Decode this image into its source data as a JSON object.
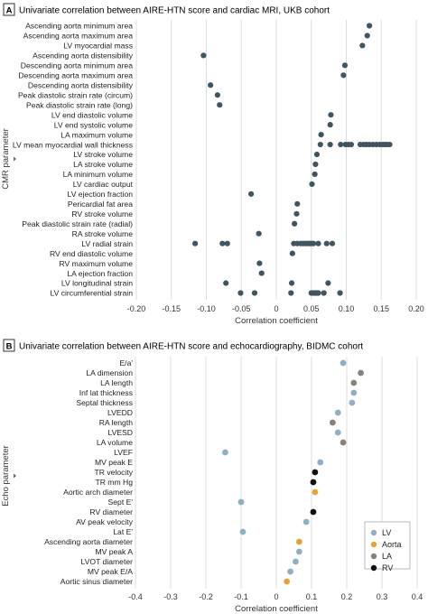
{
  "panels": [
    {
      "letter": "A",
      "title": "Univariate correlation between AIRE-HTN score and cardiac MRI, UKB cohort"
    },
    {
      "letter": "B",
      "title": "Univariate correlation between AIRE-HTN score and echocardiography, BIDMC cohort"
    }
  ],
  "colors": {
    "grid": "#d9dde0",
    "panel_letter_bg": "#ffffff",
    "point_default": "#3f5560",
    "LV": "#8fb0c3",
    "Aorta": "#e8a23a",
    "LA": "#8a8278",
    "RV": "#111111"
  },
  "chart_data": [
    {
      "type": "scatter",
      "title": "Univariate correlation between AIRE-HTN score and cardiac MRI, UKB cohort",
      "xlabel": "Correlation coefficient",
      "ylabel": "CMR parameter",
      "xlim": [
        -0.2,
        0.2
      ],
      "xticks": [
        "-0.20",
        "-0.15",
        "-0.10",
        "-0.05",
        "0",
        "0.05",
        "0.10",
        "0.15",
        "0.20"
      ],
      "tick_values": [
        -0.2,
        -0.15,
        -0.1,
        -0.05,
        0,
        0.05,
        0.1,
        0.15,
        0.2
      ],
      "grid": "vertical",
      "categories": [
        "Ascending aorta minimum area",
        "Ascending aorta maximum area",
        "LV myocardial mass",
        "Ascending aorta distensibility",
        "Descending aorta minimum area",
        "Descending aorta maximum area",
        "Descending aorta distensibility",
        "Peak diastolic strain rate (circum)",
        "Peak diastolic strain rate (long)",
        "LV end diastolic volume",
        "LV end systolic volume",
        "LA maximum volume",
        "LV mean myocardial wall thickness",
        "LV stroke volume",
        "LA stroke volume",
        "LA minimum volume",
        "LV cardiac output",
        "LV ejection fraction",
        "Pericardial fat area",
        "RV stroke volume",
        "Peak diastolic strain rate (radial)",
        "RA stroke volume",
        "LV radial strain",
        "RV end diastolic volume",
        "RV maximum volume",
        "LA ejection fraction",
        "LV longitudinal strain",
        "LV circumferential strain"
      ],
      "values": [
        [
          0.133
        ],
        [
          0.13
        ],
        [
          0.123
        ],
        [
          -0.104
        ],
        [
          0.098
        ],
        [
          0.096
        ],
        [
          -0.094
        ],
        [
          -0.084
        ],
        [
          -0.081
        ],
        [
          0.078
        ],
        [
          0.077
        ],
        [
          0.064
        ],
        [
          0.063,
          0.077,
          0.092,
          0.099,
          0.103,
          0.107,
          0.12,
          0.125,
          0.129,
          0.133,
          0.138,
          0.143,
          0.148,
          0.152,
          0.155,
          0.158,
          0.162
        ],
        [
          0.058
        ],
        [
          0.056
        ],
        [
          0.055
        ],
        [
          0.051
        ],
        [
          -0.036
        ],
        [
          0.03
        ],
        [
          0.029
        ],
        [
          0.026
        ],
        [
          -0.025
        ],
        [
          -0.116,
          -0.077,
          -0.07,
          0.025,
          0.03,
          0.035,
          0.038,
          0.041,
          0.043,
          0.046,
          0.048,
          0.05,
          0.053,
          0.06,
          0.072,
          0.08
        ],
        [
          0.023
        ],
        [
          -0.024
        ],
        [
          -0.021
        ],
        [
          -0.072,
          0.022,
          0.074
        ],
        [
          -0.051,
          -0.031,
          0.021,
          0.05,
          0.053,
          0.055,
          0.057,
          0.058,
          0.06,
          0.068,
          0.091
        ]
      ]
    },
    {
      "type": "scatter",
      "title": "Univariate correlation between AIRE-HTN score and echocardiography, BIDMC cohort",
      "xlabel": "Correlation coefficient",
      "ylabel": "Echo parameter",
      "xlim": [
        -0.4,
        0.4
      ],
      "xticks": [
        "-0.4",
        "-0.3",
        "-0.2",
        "-0.1",
        "0",
        "0.1",
        "0.2",
        "0.3",
        "0.4"
      ],
      "tick_values": [
        -0.4,
        -0.3,
        -0.2,
        -0.1,
        0,
        0.1,
        0.2,
        0.3,
        0.4
      ],
      "grid": "vertical",
      "legend": {
        "placement": "bottom-right",
        "entries": [
          "LV",
          "Aorta",
          "LA",
          "RV"
        ]
      },
      "categories": [
        "E/a'",
        "LA dimension",
        "LA length",
        "Inf lat thickness",
        "Septal thickness",
        "LVEDD",
        "RA length",
        "LVESD",
        "LA volume",
        "LVEF",
        "MV peak E",
        "TR velocity",
        "TR mm Hg",
        "Aortic arch diameter",
        "Sept E'",
        "RV diameter",
        "AV peak velocity",
        "Lat E'",
        "Ascending aorta diameter",
        "MV peak A",
        "LVOT diameter",
        "MV peak E/A",
        "Aortic sinus diameter"
      ],
      "values": [
        0.19,
        0.24,
        0.22,
        0.22,
        0.215,
        0.175,
        0.16,
        0.175,
        0.19,
        -0.145,
        0.125,
        0.11,
        0.105,
        0.11,
        -0.1,
        0.105,
        0.085,
        -0.095,
        0.065,
        0.065,
        0.055,
        0.04,
        0.03
      ],
      "groups": [
        "LV",
        "LA",
        "LA",
        "LV",
        "LV",
        "LV",
        "LA",
        "LV",
        "LA",
        "LV",
        "LV",
        "RV",
        "RV",
        "Aorta",
        "LV",
        "RV",
        "LV",
        "LV",
        "Aorta",
        "LV",
        "LV",
        "LV",
        "Aorta"
      ]
    }
  ]
}
